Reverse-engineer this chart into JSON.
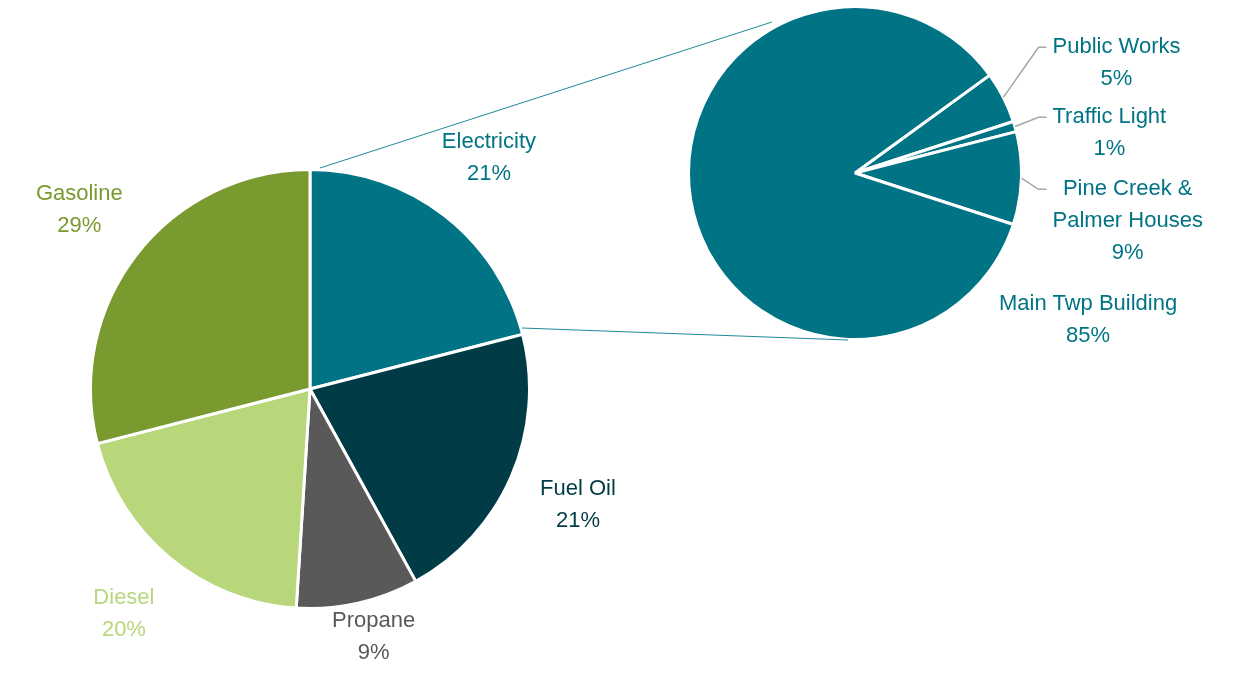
{
  "chart_data": [
    {
      "type": "pie",
      "categories": [
        "Electricity",
        "Fuel Oil",
        "Propane",
        "Diesel",
        "Gasoline"
      ],
      "values": [
        21,
        21,
        9,
        20,
        29
      ],
      "value_labels": [
        "21%",
        "21%",
        "9%",
        "20%",
        "29%"
      ],
      "colors": [
        "#007485",
        "#003b46",
        "#595959",
        "#b8d67a",
        "#789a2f"
      ]
    },
    {
      "type": "pie",
      "categories": [
        "Public Works",
        "Traffic Light",
        "Pine Creek & Palmer Houses",
        "Main Twp Building"
      ],
      "values": [
        5,
        1,
        9,
        85
      ],
      "value_labels": [
        "5%",
        "1%",
        "9%",
        "85%"
      ],
      "colors": [
        "#007485",
        "#007485",
        "#007485",
        "#007485"
      ]
    }
  ]
}
